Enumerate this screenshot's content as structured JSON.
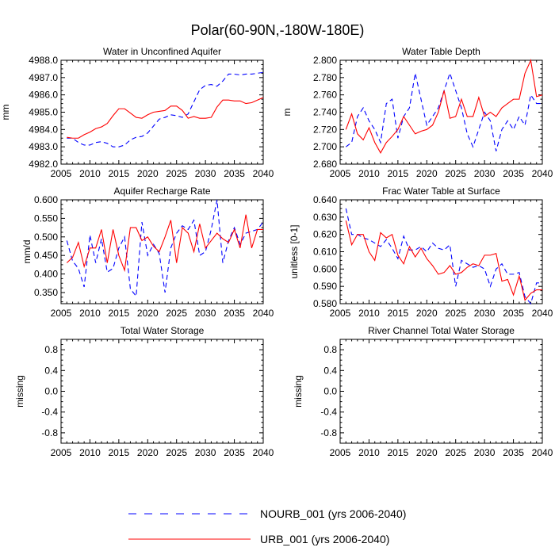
{
  "figure_title": "Polar(60-90N,-180W-180E)",
  "colors": {
    "nourb": "#0000ff",
    "urb": "#ff0000",
    "axis": "#000000"
  },
  "legend": {
    "nourb_label": "NOURB_001 (yrs 2006-2040)",
    "urb_label": "URB_001 (yrs 2006-2040)"
  },
  "chart_data": [
    {
      "type": "line",
      "title": "Water in Unconfined Aquifer",
      "xlabel": "",
      "ylabel": "mm",
      "xlim": [
        2005,
        2040
      ],
      "ylim": [
        4982.0,
        4988.0
      ],
      "xticks": [
        2005,
        2010,
        2015,
        2020,
        2025,
        2030,
        2035,
        2040
      ],
      "yticks": [
        4982.0,
        4983.0,
        4984.0,
        4985.0,
        4986.0,
        4987.0,
        4988.0
      ],
      "ytick_labels": [
        "4982.0",
        "4983.0",
        "4984.0",
        "4985.0",
        "4986.0",
        "4987.0",
        "4988.0"
      ],
      "x": [
        2006,
        2007,
        2008,
        2009,
        2010,
        2011,
        2012,
        2013,
        2014,
        2015,
        2016,
        2017,
        2018,
        2019,
        2020,
        2021,
        2022,
        2023,
        2024,
        2025,
        2026,
        2027,
        2028,
        2029,
        2030,
        2031,
        2032,
        2033,
        2034,
        2035,
        2036,
        2037,
        2038,
        2039,
        2040
      ],
      "series": [
        {
          "name": "NOURB_001",
          "style": "dashed",
          "values": [
            4983.5,
            4983.5,
            4983.25,
            4983.1,
            4983.1,
            4983.25,
            4983.3,
            4983.2,
            4983.0,
            4983.0,
            4983.1,
            4983.4,
            4983.55,
            4983.6,
            4983.8,
            4984.2,
            4984.6,
            4984.7,
            4984.85,
            4984.8,
            4984.7,
            4984.9,
            4985.6,
            4986.3,
            4986.55,
            4986.6,
            4986.5,
            4986.8,
            4987.2,
            4987.2,
            4987.15,
            4987.2,
            4987.2,
            4987.25,
            4987.3
          ]
        },
        {
          "name": "URB_001",
          "style": "solid",
          "values": [
            4983.55,
            4983.5,
            4983.5,
            4983.7,
            4983.85,
            4984.05,
            4984.15,
            4984.35,
            4984.8,
            4985.2,
            4985.2,
            4984.95,
            4984.7,
            4984.65,
            4984.85,
            4985.0,
            4985.05,
            4985.1,
            4985.35,
            4985.35,
            4985.1,
            4984.65,
            4984.75,
            4984.65,
            4984.65,
            4984.7,
            4985.3,
            4985.7,
            4985.7,
            4985.65,
            4985.65,
            4985.5,
            4985.55,
            4985.7,
            4985.85
          ]
        }
      ]
    },
    {
      "type": "line",
      "title": "Water Table Depth",
      "xlabel": "",
      "ylabel": "m",
      "xlim": [
        2005,
        2040
      ],
      "ylim": [
        2.68,
        2.8
      ],
      "xticks": [
        2005,
        2010,
        2015,
        2020,
        2025,
        2030,
        2035,
        2040
      ],
      "yticks": [
        2.68,
        2.7,
        2.72,
        2.74,
        2.76,
        2.78,
        2.8
      ],
      "ytick_labels": [
        "2.680",
        "2.700",
        "2.720",
        "2.740",
        "2.760",
        "2.780",
        "2.800"
      ],
      "x": [
        2006,
        2007,
        2008,
        2009,
        2010,
        2011,
        2012,
        2013,
        2014,
        2015,
        2016,
        2017,
        2018,
        2019,
        2020,
        2021,
        2022,
        2023,
        2024,
        2025,
        2026,
        2027,
        2028,
        2029,
        2030,
        2031,
        2032,
        2033,
        2034,
        2035,
        2036,
        2037,
        2038,
        2039,
        2040
      ],
      "series": [
        {
          "name": "NOURB_001",
          "style": "dashed",
          "values": [
            2.7,
            2.705,
            2.735,
            2.745,
            2.73,
            2.72,
            2.705,
            2.75,
            2.755,
            2.71,
            2.735,
            2.745,
            2.785,
            2.755,
            2.725,
            2.735,
            2.745,
            2.765,
            2.785,
            2.765,
            2.745,
            2.715,
            2.7,
            2.72,
            2.74,
            2.73,
            2.695,
            2.72,
            2.73,
            2.72,
            2.735,
            2.725,
            2.76,
            2.75,
            2.75
          ]
        },
        {
          "name": "URB_001",
          "style": "solid",
          "values": [
            2.72,
            2.738,
            2.715,
            2.708,
            2.722,
            2.705,
            2.693,
            2.705,
            2.712,
            2.72,
            2.735,
            2.725,
            2.715,
            2.718,
            2.72,
            2.725,
            2.74,
            2.765,
            2.733,
            2.735,
            2.755,
            2.735,
            2.735,
            2.757,
            2.735,
            2.74,
            2.735,
            2.745,
            2.75,
            2.755,
            2.755,
            2.785,
            2.8,
            2.758,
            2.76
          ]
        }
      ]
    },
    {
      "type": "line",
      "title": "Aquifer Recharge Rate",
      "xlabel": "",
      "ylabel": "mm/d",
      "xlim": [
        2005,
        2040
      ],
      "ylim": [
        0.32,
        0.6
      ],
      "xticks": [
        2005,
        2010,
        2015,
        2020,
        2025,
        2030,
        2035,
        2040
      ],
      "yticks": [
        0.35,
        0.4,
        0.45,
        0.5,
        0.55,
        0.6
      ],
      "ytick_labels": [
        "0.350",
        "0.400",
        "0.450",
        "0.500",
        "0.550",
        "0.600"
      ],
      "x": [
        2006,
        2007,
        2008,
        2009,
        2010,
        2011,
        2012,
        2013,
        2014,
        2015,
        2016,
        2017,
        2018,
        2019,
        2020,
        2021,
        2022,
        2023,
        2024,
        2025,
        2026,
        2027,
        2028,
        2029,
        2030,
        2031,
        2032,
        2033,
        2034,
        2035,
        2036,
        2037,
        2038,
        2039,
        2040
      ],
      "series": [
        {
          "name": "NOURB_001",
          "style": "dashed",
          "values": [
            0.49,
            0.435,
            0.415,
            0.365,
            0.505,
            0.43,
            0.495,
            0.405,
            0.415,
            0.47,
            0.5,
            0.36,
            0.34,
            0.54,
            0.45,
            0.48,
            0.455,
            0.35,
            0.47,
            0.51,
            0.53,
            0.52,
            0.545,
            0.45,
            0.46,
            0.52,
            0.6,
            0.43,
            0.49,
            0.525,
            0.48,
            0.51,
            0.515,
            0.52,
            0.54
          ]
        },
        {
          "name": "URB_001",
          "style": "solid",
          "values": [
            0.43,
            0.445,
            0.485,
            0.42,
            0.47,
            0.47,
            0.52,
            0.43,
            0.52,
            0.45,
            0.41,
            0.525,
            0.525,
            0.49,
            0.5,
            0.475,
            0.46,
            0.5,
            0.545,
            0.43,
            0.525,
            0.51,
            0.46,
            0.535,
            0.47,
            0.49,
            0.51,
            0.495,
            0.485,
            0.52,
            0.47,
            0.56,
            0.47,
            0.52,
            0.52
          ]
        }
      ]
    },
    {
      "type": "line",
      "title": "Frac Water Table at Surface",
      "xlabel": "",
      "ylabel": "unitless [0-1]",
      "xlim": [
        2005,
        2040
      ],
      "ylim": [
        0.58,
        0.64
      ],
      "xticks": [
        2005,
        2010,
        2015,
        2020,
        2025,
        2030,
        2035,
        2040
      ],
      "yticks": [
        0.58,
        0.59,
        0.6,
        0.61,
        0.62,
        0.63,
        0.64
      ],
      "ytick_labels": [
        "0.580",
        "0.590",
        "0.600",
        "0.610",
        "0.620",
        "0.630",
        "0.640"
      ],
      "x": [
        2006,
        2007,
        2008,
        2009,
        2010,
        2011,
        2012,
        2013,
        2014,
        2015,
        2016,
        2017,
        2018,
        2019,
        2020,
        2021,
        2022,
        2023,
        2024,
        2025,
        2026,
        2027,
        2028,
        2029,
        2030,
        2031,
        2032,
        2033,
        2034,
        2035,
        2036,
        2037,
        2038,
        2039,
        2040
      ],
      "series": [
        {
          "name": "NOURB_001",
          "style": "dashed",
          "values": [
            0.635,
            0.62,
            0.62,
            0.618,
            0.617,
            0.615,
            0.613,
            0.617,
            0.612,
            0.606,
            0.619,
            0.611,
            0.611,
            0.613,
            0.61,
            0.615,
            0.612,
            0.611,
            0.614,
            0.59,
            0.605,
            0.603,
            0.601,
            0.602,
            0.6,
            0.59,
            0.6,
            0.603,
            0.597,
            0.597,
            0.598,
            0.584,
            0.58,
            0.592,
            0.592
          ]
        },
        {
          "name": "URB_001",
          "style": "solid",
          "values": [
            0.628,
            0.614,
            0.62,
            0.62,
            0.61,
            0.605,
            0.621,
            0.618,
            0.62,
            0.608,
            0.603,
            0.613,
            0.607,
            0.612,
            0.606,
            0.602,
            0.597,
            0.598,
            0.602,
            0.597,
            0.598,
            0.601,
            0.603,
            0.602,
            0.608,
            0.608,
            0.609,
            0.593,
            0.594,
            0.585,
            0.596,
            0.582,
            0.586,
            0.588,
            0.588
          ]
        }
      ]
    },
    {
      "type": "line",
      "title": "Total Water Storage",
      "xlabel": "",
      "ylabel": "missing",
      "xlim": [
        2005,
        2040
      ],
      "ylim": [
        -1.0,
        1.0
      ],
      "xticks": [
        2005,
        2010,
        2015,
        2020,
        2025,
        2030,
        2035,
        2040
      ],
      "yticks": [
        -0.8,
        -0.4,
        0.0,
        0.4,
        0.8
      ],
      "ytick_labels": [
        "-0.8",
        "-0.4",
        "0.0",
        "0.4",
        "0.8"
      ],
      "x": [],
      "series": []
    },
    {
      "type": "line",
      "title": "River Channel Total Water Storage",
      "xlabel": "",
      "ylabel": "missing",
      "xlim": [
        2005,
        2040
      ],
      "ylim": [
        -1.0,
        1.0
      ],
      "xticks": [
        2005,
        2010,
        2015,
        2020,
        2025,
        2030,
        2035,
        2040
      ],
      "yticks": [
        -0.8,
        -0.4,
        0.0,
        0.4,
        0.8
      ],
      "ytick_labels": [
        "-0.8",
        "-0.4",
        "0.0",
        "0.4",
        "0.8"
      ],
      "x": [],
      "series": []
    }
  ]
}
